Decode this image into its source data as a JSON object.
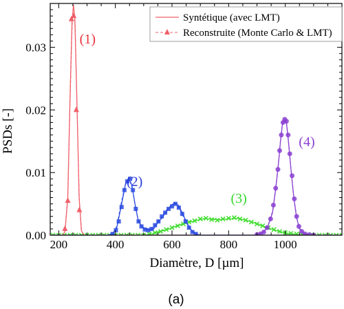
{
  "caption": "(a)",
  "chart_data": {
    "type": "line",
    "xlabel": "Diamètre, D [µm]",
    "ylabel": "PSDs [-]",
    "xlim": [
      170,
      1200
    ],
    "ylim": [
      0,
      0.037
    ],
    "xticks": [
      200,
      400,
      600,
      800,
      1000
    ],
    "xtick_labels": [
      "200",
      "400",
      "600",
      "800",
      "1000"
    ],
    "yticks": [
      0,
      0.01,
      0.02,
      0.03
    ],
    "ytick_labels": [
      "0.00",
      "0.01",
      "0.02",
      "0.03"
    ],
    "grid": false,
    "legend_position": "top-right",
    "legend": [
      {
        "label": "Syntétique (avec LMT)",
        "style": "solid"
      },
      {
        "label": "Reconstruite (Monte Carlo & LMT)",
        "style": "dashed-triangle"
      }
    ],
    "annotations": [
      {
        "text": "(1)",
        "x": 302,
        "y": 0.0306,
        "color": "#e8303a"
      },
      {
        "text": "(2)",
        "x": 468,
        "y": 0.0079,
        "color": "#2a3ad8"
      },
      {
        "text": "(3)",
        "x": 836,
        "y": 0.0052,
        "color": "#33d62a"
      },
      {
        "text": "(4)",
        "x": 1076,
        "y": 0.0142,
        "color": "#8a3fd1"
      }
    ],
    "series": [
      {
        "peak": "(1)",
        "color": "#f0606a",
        "marker": "triangle",
        "solid": [
          [
            175,
            0
          ],
          [
            215,
            0
          ],
          [
            222,
            0.0006
          ],
          [
            232,
            0.006
          ],
          [
            240,
            0.022
          ],
          [
            247,
            0.034
          ],
          [
            252,
            0.0368
          ],
          [
            257,
            0.0345
          ],
          [
            265,
            0.02
          ],
          [
            272,
            0.006
          ],
          [
            280,
            0.0007
          ],
          [
            290,
            0
          ],
          [
            1200,
            0
          ]
        ],
        "dashed": [
          [
            175,
            0
          ],
          [
            215,
            0
          ],
          [
            222,
            0.0006
          ],
          [
            232,
            0.0055
          ],
          [
            240,
            0.021
          ],
          [
            248,
            0.0345
          ],
          [
            253,
            0.0355
          ],
          [
            258,
            0.0338
          ],
          [
            265,
            0.0195
          ],
          [
            273,
            0.0055
          ],
          [
            281,
            0.0006
          ],
          [
            291,
            0
          ],
          [
            1200,
            0
          ]
        ],
        "markers": [
          [
            222,
            0.001
          ],
          [
            232,
            0.0055
          ],
          [
            245,
            0.0345
          ],
          [
            253,
            0.035
          ],
          [
            262,
            0.02
          ],
          [
            273,
            0.004
          ]
        ]
      },
      {
        "peak": "(2)",
        "color": "#2a4ae0",
        "marker": "square",
        "solid": [
          [
            175,
            0
          ],
          [
            370,
            0
          ],
          [
            390,
            0.0002
          ],
          [
            405,
            0.0012
          ],
          [
            420,
            0.0045
          ],
          [
            435,
            0.008
          ],
          [
            447,
            0.0092
          ],
          [
            458,
            0.008
          ],
          [
            470,
            0.0048
          ],
          [
            480,
            0.0025
          ],
          [
            490,
            0.0016
          ],
          [
            505,
            0.001
          ],
          [
            520,
            0.0008
          ],
          [
            535,
            0.001
          ],
          [
            550,
            0.002
          ],
          [
            565,
            0.0028
          ],
          [
            580,
            0.0038
          ],
          [
            595,
            0.0047
          ],
          [
            610,
            0.0052
          ],
          [
            622,
            0.0048
          ],
          [
            635,
            0.0037
          ],
          [
            650,
            0.0022
          ],
          [
            665,
            0.001
          ],
          [
            680,
            0.0003
          ],
          [
            700,
            0
          ],
          [
            1200,
            0
          ]
        ],
        "dashed": [
          [
            175,
            0
          ],
          [
            375,
            0
          ],
          [
            390,
            0.0002
          ],
          [
            405,
            0.0014
          ],
          [
            420,
            0.005
          ],
          [
            437,
            0.0085
          ],
          [
            450,
            0.0088
          ],
          [
            460,
            0.0074
          ],
          [
            472,
            0.0042
          ],
          [
            482,
            0.0022
          ],
          [
            492,
            0.0014
          ],
          [
            505,
            0.0009
          ],
          [
            520,
            0.0008
          ],
          [
            535,
            0.0012
          ],
          [
            550,
            0.0022
          ],
          [
            565,
            0.003
          ],
          [
            580,
            0.004
          ],
          [
            595,
            0.0046
          ],
          [
            610,
            0.005
          ],
          [
            622,
            0.0045
          ],
          [
            635,
            0.0034
          ],
          [
            650,
            0.002
          ],
          [
            665,
            0.0009
          ],
          [
            680,
            0.0002
          ],
          [
            700,
            0
          ],
          [
            1200,
            0
          ]
        ],
        "markers": [
          [
            390,
            0.0002
          ],
          [
            402,
            0.0008
          ],
          [
            412,
            0.0022
          ],
          [
            422,
            0.0045
          ],
          [
            432,
            0.0072
          ],
          [
            442,
            0.0086
          ],
          [
            452,
            0.009
          ],
          [
            462,
            0.0072
          ],
          [
            472,
            0.0042
          ],
          [
            482,
            0.0022
          ],
          [
            492,
            0.0014
          ],
          [
            504,
            0.0009
          ],
          [
            516,
            0.0008
          ],
          [
            528,
            0.001
          ],
          [
            540,
            0.0016
          ],
          [
            552,
            0.0022
          ],
          [
            564,
            0.003
          ],
          [
            576,
            0.0036
          ],
          [
            588,
            0.0042
          ],
          [
            600,
            0.0046
          ],
          [
            612,
            0.005
          ],
          [
            624,
            0.0044
          ],
          [
            636,
            0.0034
          ],
          [
            648,
            0.0022
          ],
          [
            660,
            0.0012
          ],
          [
            672,
            0.0005
          ],
          [
            684,
            0.0002
          ]
        ]
      },
      {
        "peak": "(3)",
        "color": "#44dd33",
        "marker": "x",
        "solid": [
          [
            175,
            0
          ],
          [
            500,
            0
          ],
          [
            530,
            0.0002
          ],
          [
            560,
            0.0006
          ],
          [
            590,
            0.001
          ],
          [
            620,
            0.0015
          ],
          [
            650,
            0.0019
          ],
          [
            680,
            0.0023
          ],
          [
            710,
            0.0026
          ],
          [
            740,
            0.0026
          ],
          [
            770,
            0.0025
          ],
          [
            800,
            0.0026
          ],
          [
            830,
            0.0027
          ],
          [
            860,
            0.0024
          ],
          [
            890,
            0.002
          ],
          [
            920,
            0.0015
          ],
          [
            950,
            0.001
          ],
          [
            980,
            0.0006
          ],
          [
            1010,
            0.0003
          ],
          [
            1050,
            0.0001
          ],
          [
            1100,
            0
          ],
          [
            1200,
            0
          ]
        ],
        "dashed": [
          [
            175,
            0
          ],
          [
            500,
            0
          ],
          [
            530,
            0.0003
          ],
          [
            560,
            0.0007
          ],
          [
            590,
            0.0011
          ],
          [
            620,
            0.0016
          ],
          [
            650,
            0.002
          ],
          [
            680,
            0.0024
          ],
          [
            710,
            0.0027
          ],
          [
            740,
            0.0025
          ],
          [
            770,
            0.0024
          ],
          [
            800,
            0.0027
          ],
          [
            830,
            0.0028
          ],
          [
            860,
            0.0023
          ],
          [
            890,
            0.0019
          ],
          [
            920,
            0.0014
          ],
          [
            950,
            0.0009
          ],
          [
            980,
            0.0005
          ],
          [
            1010,
            0.0002
          ],
          [
            1050,
            0.0001
          ],
          [
            1100,
            0
          ],
          [
            1200,
            0
          ]
        ],
        "markers": [
          [
            180,
            0
          ],
          [
            200,
            0
          ],
          [
            220,
            0
          ],
          [
            240,
            0
          ],
          [
            260,
            0
          ],
          [
            280,
            0
          ],
          [
            300,
            0
          ],
          [
            320,
            0
          ],
          [
            340,
            0
          ],
          [
            360,
            0
          ],
          [
            380,
            0
          ],
          [
            400,
            0
          ],
          [
            420,
            0
          ],
          [
            440,
            0
          ],
          [
            460,
            0
          ],
          [
            480,
            0
          ],
          [
            500,
            0
          ],
          [
            520,
            0.0002
          ],
          [
            540,
            0.0004
          ],
          [
            560,
            0.0006
          ],
          [
            580,
            0.0009
          ],
          [
            600,
            0.0012
          ],
          [
            620,
            0.0015
          ],
          [
            640,
            0.0018
          ],
          [
            660,
            0.0021
          ],
          [
            680,
            0.0023
          ],
          [
            700,
            0.0026
          ],
          [
            720,
            0.0027
          ],
          [
            740,
            0.0025
          ],
          [
            760,
            0.0024
          ],
          [
            780,
            0.0026
          ],
          [
            800,
            0.0027
          ],
          [
            820,
            0.0028
          ],
          [
            840,
            0.0026
          ],
          [
            860,
            0.0024
          ],
          [
            880,
            0.0021
          ],
          [
            900,
            0.0018
          ],
          [
            920,
            0.0015
          ],
          [
            940,
            0.0012
          ],
          [
            960,
            0.0009
          ],
          [
            980,
            0.0006
          ],
          [
            1000,
            0.0004
          ],
          [
            1020,
            0.0003
          ],
          [
            1040,
            0.0002
          ],
          [
            1060,
            0.0001
          ],
          [
            1080,
            0
          ],
          [
            1100,
            0
          ],
          [
            1120,
            0
          ],
          [
            1140,
            0
          ],
          [
            1160,
            0
          ],
          [
            1180,
            0
          ],
          [
            1200,
            0
          ]
        ]
      },
      {
        "peak": "(4)",
        "color": "#8a3fd1",
        "marker": "circle",
        "solid": [
          [
            175,
            0
          ],
          [
            890,
            0
          ],
          [
            910,
            0.0002
          ],
          [
            925,
            0.0006
          ],
          [
            940,
            0.0016
          ],
          [
            955,
            0.0036
          ],
          [
            965,
            0.007
          ],
          [
            975,
            0.011
          ],
          [
            983,
            0.015
          ],
          [
            990,
            0.0178
          ],
          [
            997,
            0.0184
          ],
          [
            1004,
            0.018
          ],
          [
            1011,
            0.015
          ],
          [
            1020,
            0.0105
          ],
          [
            1030,
            0.006
          ],
          [
            1040,
            0.0028
          ],
          [
            1050,
            0.001
          ],
          [
            1065,
            0.0003
          ],
          [
            1080,
            0
          ],
          [
            1200,
            0
          ]
        ],
        "dashed": [
          [
            175,
            0
          ],
          [
            890,
            0
          ],
          [
            910,
            0.0002
          ],
          [
            925,
            0.0006
          ],
          [
            940,
            0.0017
          ],
          [
            955,
            0.0038
          ],
          [
            965,
            0.0072
          ],
          [
            975,
            0.0112
          ],
          [
            983,
            0.0152
          ],
          [
            990,
            0.018
          ],
          [
            997,
            0.0185
          ],
          [
            1004,
            0.0182
          ],
          [
            1011,
            0.0152
          ],
          [
            1020,
            0.0107
          ],
          [
            1030,
            0.0062
          ],
          [
            1040,
            0.0029
          ],
          [
            1050,
            0.0011
          ],
          [
            1065,
            0.0003
          ],
          [
            1080,
            0
          ],
          [
            1200,
            0
          ]
        ],
        "markers": [
          [
            900,
            0.0001
          ],
          [
            912,
            0.0002
          ],
          [
            924,
            0.0005
          ],
          [
            936,
            0.0012
          ],
          [
            948,
            0.0026
          ],
          [
            958,
            0.0048
          ],
          [
            966,
            0.0075
          ],
          [
            974,
            0.0105
          ],
          [
            980,
            0.0135
          ],
          [
            986,
            0.016
          ],
          [
            992,
            0.018
          ],
          [
            998,
            0.0185
          ],
          [
            1004,
            0.0182
          ],
          [
            1010,
            0.016
          ],
          [
            1016,
            0.013
          ],
          [
            1024,
            0.0095
          ],
          [
            1032,
            0.0058
          ],
          [
            1040,
            0.003
          ],
          [
            1048,
            0.0014
          ],
          [
            1058,
            0.0006
          ],
          [
            1070,
            0.0002
          ],
          [
            1085,
            0.0001
          ],
          [
            1100,
            0
          ]
        ]
      }
    ]
  }
}
